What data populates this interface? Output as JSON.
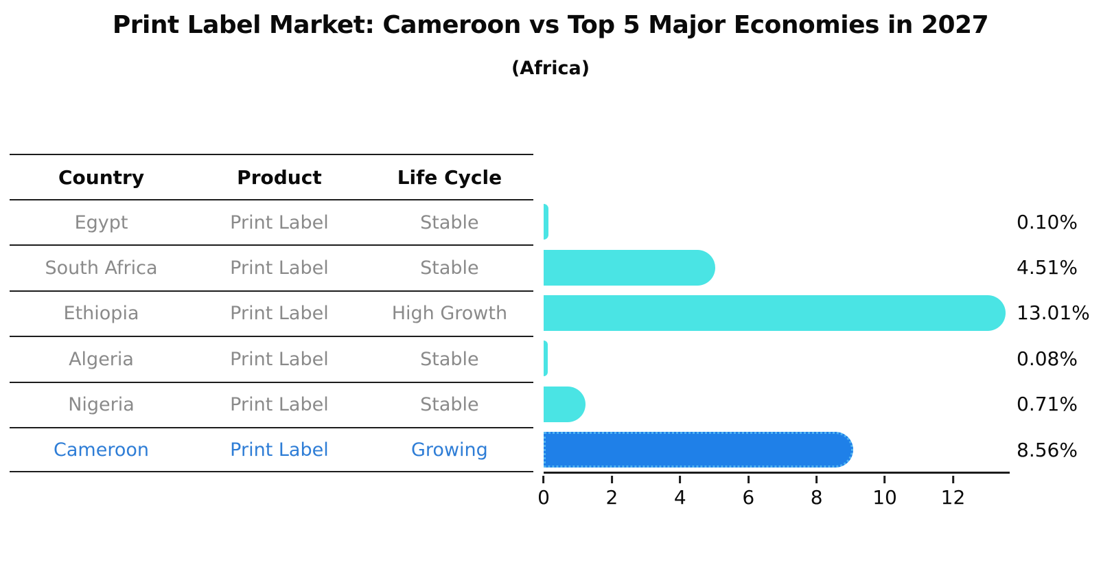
{
  "title": "Print Label Market: Cameroon vs Top 5 Major Economies in 2027",
  "subtitle": "(Africa)",
  "table": {
    "headers": [
      "Country",
      "Product",
      "Life Cycle"
    ]
  },
  "chart_data": {
    "type": "bar",
    "orientation": "horizontal",
    "title": "Print Label Market: Cameroon vs Top 5 Major Economies in 2027",
    "subtitle": "(Africa)",
    "xlabel": "",
    "ylabel": "",
    "xlim": [
      0,
      13.66
    ],
    "x_ticks": [
      0,
      2,
      4,
      6,
      8,
      10,
      12
    ],
    "grid": false,
    "legend": false,
    "rows": [
      {
        "country": "Egypt",
        "product": "Print Label",
        "life_cycle": "Stable",
        "value": 0.1,
        "label": "0.10%",
        "highlight": false
      },
      {
        "country": "South Africa",
        "product": "Print Label",
        "life_cycle": "Stable",
        "value": 4.51,
        "label": "4.51%",
        "highlight": false
      },
      {
        "country": "Ethiopia",
        "product": "Print Label",
        "life_cycle": "High Growth",
        "value": 13.01,
        "label": "13.01%",
        "highlight": false
      },
      {
        "country": "Algeria",
        "product": "Print Label",
        "life_cycle": "Stable",
        "value": 0.08,
        "label": "0.08%",
        "highlight": false
      },
      {
        "country": "Nigeria",
        "product": "Print Label",
        "life_cycle": "Stable",
        "value": 0.71,
        "label": "0.71%",
        "highlight": false
      },
      {
        "country": "Cameroon",
        "product": "Print Label",
        "life_cycle": "Growing",
        "value": 8.56,
        "label": "8.56%",
        "highlight": true
      }
    ],
    "colors": {
      "bar": "#4ae4e4",
      "highlight_bar": "#1f80e8",
      "highlight_border": "#52b5f2",
      "highlight_text": "#2e7dd6",
      "row_text": "#8a8a8a",
      "axis": "#1c1c1c",
      "label_text": "#0a0a0a"
    }
  }
}
